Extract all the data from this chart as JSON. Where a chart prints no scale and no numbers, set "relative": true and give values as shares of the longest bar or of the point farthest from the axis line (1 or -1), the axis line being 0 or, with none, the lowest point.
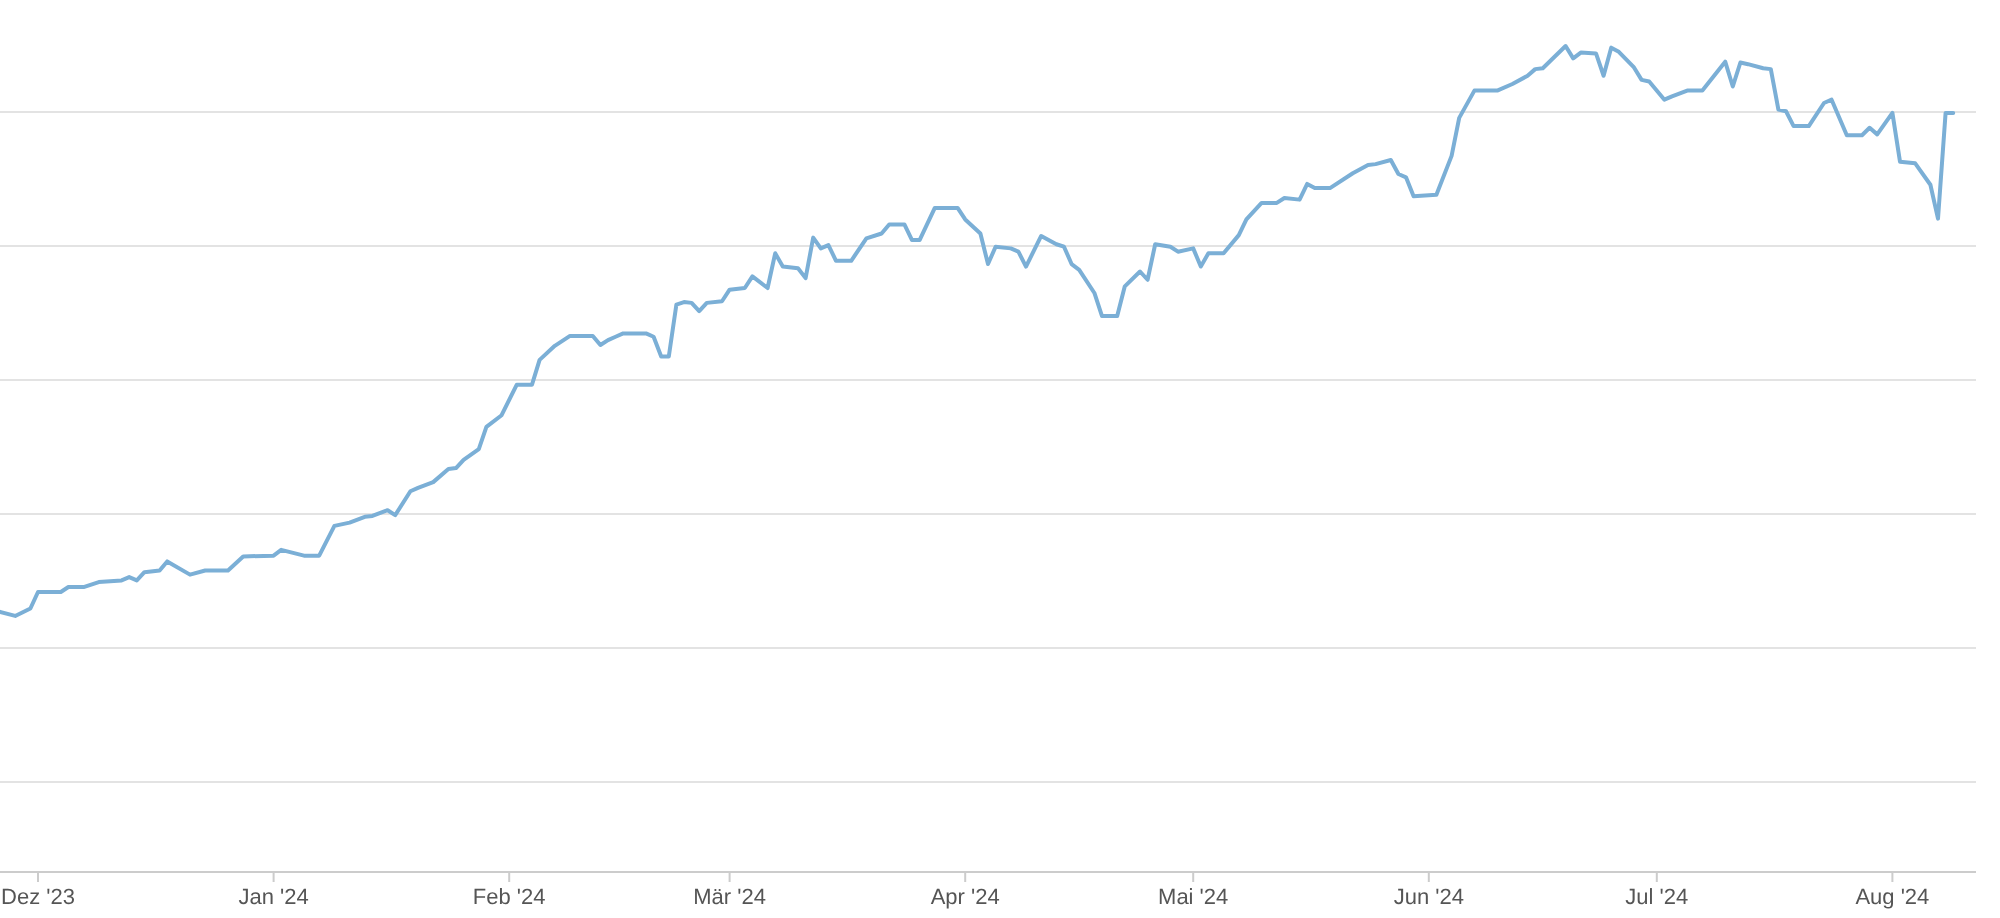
{
  "chart_data": {
    "type": "line",
    "relative": true,
    "grid": "y",
    "tick_labels": "x",
    "xlim": [
      "2023-11-26",
      "2024-08-12"
    ],
    "xticks": [
      {
        "value": "2023-12-01",
        "label": "Dez '23"
      },
      {
        "value": "2024-01-01",
        "label": "Jan '24"
      },
      {
        "value": "2024-02-01",
        "label": "Feb '24"
      },
      {
        "value": "2024-03-01",
        "label": "Mär '24"
      },
      {
        "value": "2024-04-01",
        "label": "Apr '24"
      },
      {
        "value": "2024-05-01",
        "label": "Mai '24"
      },
      {
        "value": "2024-06-01",
        "label": "Jun '24"
      },
      {
        "value": "2024-07-01",
        "label": "Jul '24"
      },
      {
        "value": "2024-08-01",
        "label": "Aug '24"
      }
    ],
    "x": [
      "2023-11-26",
      "2023-11-28",
      "2023-11-30",
      "2023-12-01",
      "2023-12-04",
      "2023-12-05",
      "2023-12-07",
      "2023-12-09",
      "2023-12-12",
      "2023-12-13",
      "2023-12-14",
      "2023-12-15",
      "2023-12-17",
      "2023-12-18",
      "2023-12-21",
      "2023-12-23",
      "2023-12-26",
      "2023-12-28",
      "2024-01-01",
      "2024-01-02",
      "2024-01-05",
      "2024-01-07",
      "2024-01-09",
      "2024-01-11",
      "2024-01-13",
      "2024-01-14",
      "2024-01-16",
      "2024-01-17",
      "2024-01-19",
      "2024-01-20",
      "2024-01-22",
      "2024-01-24",
      "2024-01-25",
      "2024-01-26",
      "2024-01-28",
      "2024-01-29",
      "2024-01-31",
      "2024-02-02",
      "2024-02-04",
      "2024-02-05",
      "2024-02-07",
      "2024-02-09",
      "2024-02-12",
      "2024-02-13",
      "2024-02-14",
      "2024-02-15",
      "2024-02-16",
      "2024-02-19",
      "2024-02-20",
      "2024-02-21",
      "2024-02-22",
      "2024-02-23",
      "2024-02-24",
      "2024-02-25",
      "2024-02-26",
      "2024-02-27",
      "2024-02-29",
      "2024-03-01",
      "2024-03-03",
      "2024-03-04",
      "2024-03-06",
      "2024-03-07",
      "2024-03-08",
      "2024-03-10",
      "2024-03-11",
      "2024-03-12",
      "2024-03-13",
      "2024-03-14",
      "2024-03-15",
      "2024-03-17",
      "2024-03-19",
      "2024-03-21",
      "2024-03-22",
      "2024-03-24",
      "2024-03-25",
      "2024-03-26",
      "2024-03-28",
      "2024-03-31",
      "2024-04-01",
      "2024-04-03",
      "2024-04-04",
      "2024-04-05",
      "2024-04-07",
      "2024-04-08",
      "2024-04-09",
      "2024-04-11",
      "2024-04-13",
      "2024-04-14",
      "2024-04-15",
      "2024-04-16",
      "2024-04-18",
      "2024-04-19",
      "2024-04-21",
      "2024-04-22",
      "2024-04-24",
      "2024-04-25",
      "2024-04-26",
      "2024-04-28",
      "2024-04-29",
      "2024-05-01",
      "2024-05-02",
      "2024-05-03",
      "2024-05-05",
      "2024-05-07",
      "2024-05-08",
      "2024-05-10",
      "2024-05-12",
      "2024-05-13",
      "2024-05-15",
      "2024-05-16",
      "2024-05-17",
      "2024-05-19",
      "2024-05-22",
      "2024-05-24",
      "2024-05-25",
      "2024-05-27",
      "2024-05-28",
      "2024-05-29",
      "2024-05-30",
      "2024-06-02",
      "2024-06-04",
      "2024-06-05",
      "2024-06-07",
      "2024-06-10",
      "2024-06-12",
      "2024-06-14",
      "2024-06-15",
      "2024-06-16",
      "2024-06-19",
      "2024-06-20",
      "2024-06-21",
      "2024-06-23",
      "2024-06-24",
      "2024-06-25",
      "2024-06-26",
      "2024-06-28",
      "2024-06-29",
      "2024-06-30",
      "2024-07-02",
      "2024-07-03",
      "2024-07-05",
      "2024-07-07",
      "2024-07-10",
      "2024-07-11",
      "2024-07-12",
      "2024-07-13",
      "2024-07-15",
      "2024-07-16",
      "2024-07-17",
      "2024-07-18",
      "2024-07-19",
      "2024-07-21",
      "2024-07-23",
      "2024-07-24",
      "2024-07-26",
      "2024-07-28",
      "2024-07-29",
      "2024-07-30",
      "2024-08-01",
      "2024-08-02",
      "2024-08-04",
      "2024-08-06",
      "2024-08-07",
      "2024-08-08",
      "2024-08-09"
    ],
    "series": [
      {
        "color": "#7bafd6",
        "values": [
          0.315,
          0.31,
          0.319,
          0.339,
          0.339,
          0.345,
          0.345,
          0.351,
          0.353,
          0.357,
          0.353,
          0.363,
          0.365,
          0.376,
          0.36,
          0.365,
          0.365,
          0.382,
          0.383,
          0.39,
          0.383,
          0.383,
          0.419,
          0.423,
          0.43,
          0.431,
          0.438,
          0.432,
          0.461,
          0.465,
          0.472,
          0.488,
          0.489,
          0.499,
          0.512,
          0.539,
          0.553,
          0.59,
          0.59,
          0.62,
          0.637,
          0.649,
          0.649,
          0.638,
          0.644,
          0.648,
          0.652,
          0.652,
          0.648,
          0.624,
          0.624,
          0.687,
          0.69,
          0.689,
          0.679,
          0.689,
          0.691,
          0.705,
          0.707,
          0.721,
          0.707,
          0.749,
          0.733,
          0.731,
          0.719,
          0.768,
          0.755,
          0.759,
          0.74,
          0.74,
          0.767,
          0.773,
          0.784,
          0.784,
          0.765,
          0.765,
          0.804,
          0.804,
          0.79,
          0.773,
          0.736,
          0.757,
          0.755,
          0.751,
          0.733,
          0.77,
          0.76,
          0.757,
          0.736,
          0.729,
          0.701,
          0.673,
          0.673,
          0.709,
          0.727,
          0.717,
          0.76,
          0.757,
          0.751,
          0.755,
          0.733,
          0.749,
          0.749,
          0.771,
          0.79,
          0.81,
          0.81,
          0.816,
          0.814,
          0.833,
          0.828,
          0.828,
          0.846,
          0.856,
          0.857,
          0.862,
          0.845,
          0.841,
          0.818,
          0.82,
          0.867,
          0.913,
          0.946,
          0.946,
          0.954,
          0.964,
          0.972,
          0.973,
          1.0,
          0.985,
          0.992,
          0.991,
          0.964,
          0.998,
          0.993,
          0.974,
          0.959,
          0.957,
          0.935,
          0.939,
          0.946,
          0.946,
          0.981,
          0.951,
          0.98,
          0.978,
          0.973,
          0.972,
          0.923,
          0.921,
          0.903,
          0.903,
          0.931,
          0.935,
          0.892,
          0.892,
          0.901,
          0.893,
          0.919,
          0.86,
          0.858,
          0.832,
          0.791,
          0.919,
          0.919
        ]
      }
    ]
  }
}
